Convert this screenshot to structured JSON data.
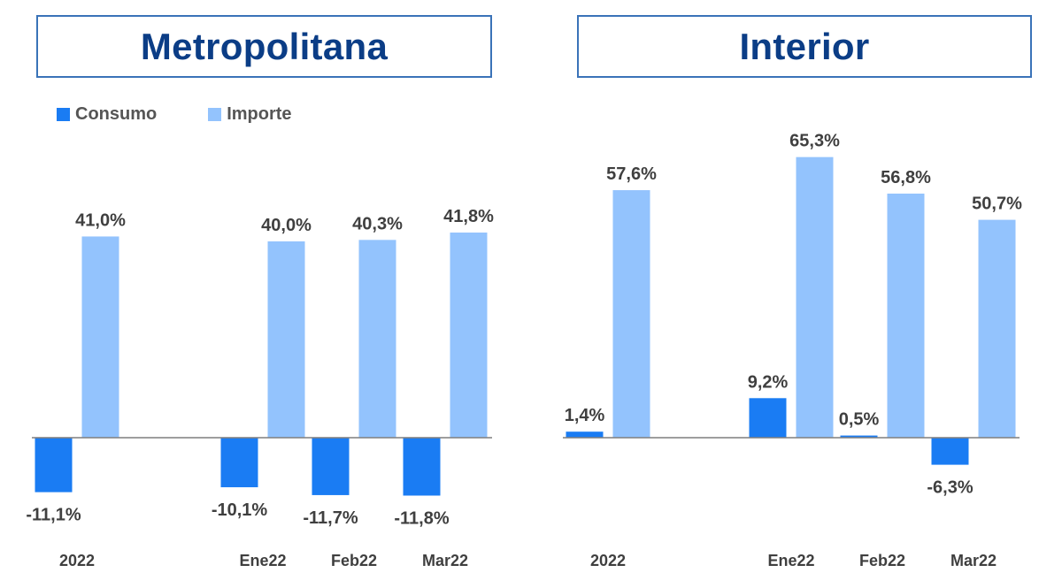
{
  "legend": {
    "consumo": "Consumo",
    "importe": "Importe"
  },
  "colors": {
    "consumo": "#1a7cf3",
    "importe": "#93c3fd",
    "title_text": "#0b3d86",
    "title_border": "#3a73b8",
    "label_text": "#3f3f3f"
  },
  "chart_data": [
    {
      "type": "bar",
      "title": "Metropolitana",
      "categories": [
        "2022",
        "Ene22",
        "Feb22",
        "Mar22"
      ],
      "series": [
        {
          "name": "Consumo",
          "values": [
            -11.1,
            -10.1,
            -11.7,
            -11.8
          ],
          "labels": [
            "-11,1%",
            "-10,1%",
            "-11,7%",
            "-11,8%"
          ]
        },
        {
          "name": "Importe",
          "values": [
            41.0,
            40.0,
            40.3,
            41.8
          ],
          "labels": [
            "41,0%",
            "40,0%",
            "40,3%",
            "41,8%"
          ]
        }
      ],
      "legend_position": "top-left",
      "grid": false
    },
    {
      "type": "bar",
      "title": "Interior",
      "categories": [
        "2022",
        "Ene22",
        "Feb22",
        "Mar22"
      ],
      "series": [
        {
          "name": "Consumo",
          "values": [
            1.4,
            9.2,
            0.5,
            -6.3
          ],
          "labels": [
            "1,4%",
            "9,2%",
            "0,5%",
            "-6,3%"
          ]
        },
        {
          "name": "Importe",
          "values": [
            57.6,
            65.3,
            56.8,
            50.7
          ],
          "labels": [
            "57,6%",
            "65,3%",
            "56,8%",
            "50,7%"
          ]
        }
      ],
      "grid": false
    }
  ]
}
